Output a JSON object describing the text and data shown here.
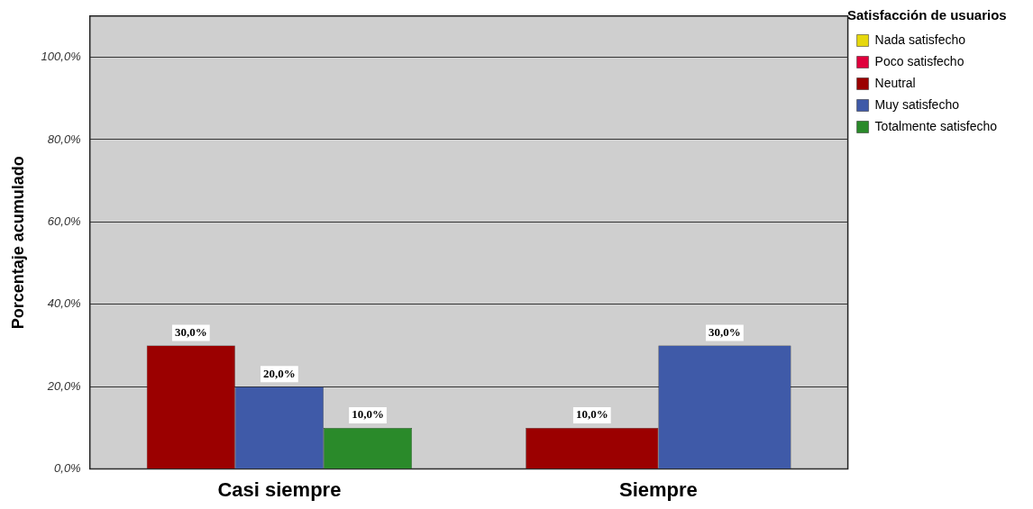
{
  "chart_data": {
    "type": "bar",
    "ylabel": "Porcentaje acumulado",
    "legend_title": "Satisfacción de usuarios",
    "legend": "top right",
    "grid": "y",
    "categories": [
      "Casi siempre",
      "Siempre"
    ],
    "ylim": [
      0,
      110
    ],
    "yticks": [
      {
        "value": 0,
        "label": "0,0%"
      },
      {
        "value": 20,
        "label": "20,0%"
      },
      {
        "value": 40,
        "label": "40,0%"
      },
      {
        "value": 60,
        "label": "60,0%"
      },
      {
        "value": 80,
        "label": "80,0%"
      },
      {
        "value": 100,
        "label": "100,0%"
      }
    ],
    "series": [
      {
        "name": "Nada satisfecho",
        "color": "#e6d80c",
        "values": [
          null,
          null
        ]
      },
      {
        "name": "Poco satisfecho",
        "color": "#e0003c",
        "values": [
          null,
          null
        ]
      },
      {
        "name": "Neutral",
        "color": "#9b0000",
        "values": [
          30,
          10
        ],
        "value_labels": [
          "30,0%",
          "10,0%"
        ]
      },
      {
        "name": "Muy satisfecho",
        "color": "#3f5aa8",
        "values": [
          20,
          30
        ],
        "value_labels": [
          "20,0%",
          "30,0%"
        ]
      },
      {
        "name": "Totalmente satisfecho",
        "color": "#2a8a2a",
        "values": [
          10,
          null
        ],
        "value_labels": [
          "10,0%",
          null
        ]
      }
    ]
  }
}
